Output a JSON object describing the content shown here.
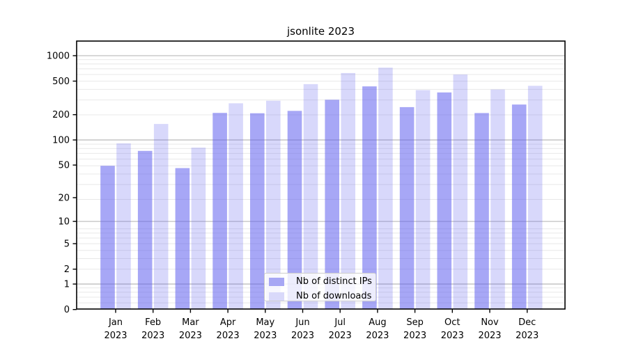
{
  "title": "jsonlite 2023",
  "colors": {
    "bar_base": "#5c5cee",
    "ips_bar_opacity": 0.54,
    "downloads_bar_opacity": 0.24,
    "ips_legend_swatch": "#a7a7f4",
    "downloads_legend_swatch": "#d9d9fa",
    "major_grid": "#b2b2b2",
    "minor_grid": "#e8e8e8",
    "spine": "#000000",
    "tick_text": "#000000"
  },
  "chart_data": {
    "type": "bar",
    "title": "jsonlite 2023",
    "months": [
      "Jan",
      "Feb",
      "Mar",
      "Apr",
      "May",
      "Jun",
      "Jul",
      "Aug",
      "Sep",
      "Oct",
      "Nov",
      "Dec"
    ],
    "year": "2023",
    "categories": [
      "Jan 2023",
      "Feb 2023",
      "Mar 2023",
      "Apr 2023",
      "May 2023",
      "Jun 2023",
      "Jul 2023",
      "Aug 2023",
      "Sep 2023",
      "Oct 2023",
      "Nov 2023",
      "Dec 2023"
    ],
    "series": [
      {
        "name": "Nb of distinct IPs",
        "values": [
          49,
          74,
          46,
          210,
          208,
          222,
          301,
          433,
          246,
          367,
          209,
          264
        ]
      },
      {
        "name": "Nb of downloads",
        "values": [
          91,
          155,
          81,
          273,
          293,
          460,
          624,
          721,
          391,
          598,
          398,
          440
        ]
      }
    ],
    "y_scale": "log10(value+1)",
    "y_ticks": [
      1000,
      500,
      200,
      100,
      50,
      20,
      10,
      5,
      2,
      1,
      0
    ],
    "y_tick_labels": [
      "1000",
      "500",
      "200",
      "100",
      "50",
      "20",
      "10",
      "5",
      "2",
      "1",
      "0"
    ],
    "major_grid_values": [
      1,
      10,
      100,
      1000
    ],
    "ylim": [
      0,
      1500
    ],
    "grid": true,
    "legend_position": "bottom-center",
    "xlabel": "",
    "ylabel": ""
  }
}
